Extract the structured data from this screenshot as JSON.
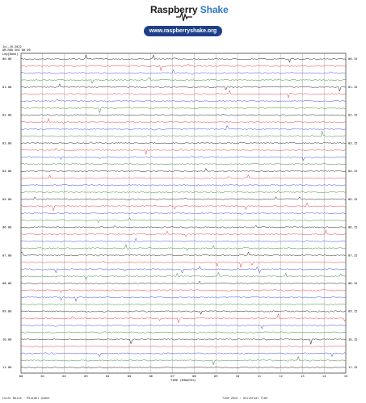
{
  "header": {
    "brand_primary": "Raspberry",
    "brand_accent": "Shake",
    "url": "www.raspberryshake.org"
  },
  "meta": {
    "date": "Jul-16-2022",
    "station": "AM.R00 SHZ 00 00",
    "filter": "Leg[Bank]"
  },
  "colors": {
    "trace_cycle": [
      "#000000",
      "#e8242a",
      "#2233d8",
      "#1f7a1f"
    ],
    "brand_accent": "#2f78c8",
    "pill": "#1e3f8a"
  },
  "chart_data": {
    "type": "line",
    "title": "",
    "xlabel": "TIME (MINUTES)",
    "x_ticks": [
      "00",
      "01",
      "02",
      "03",
      "04",
      "05",
      "06",
      "07",
      "08",
      "09",
      "10",
      "11",
      "12",
      "13",
      "14",
      "15"
    ],
    "xlim": [
      0,
      15
    ],
    "grid": true,
    "hour_labels_left": [
      "00.00",
      "01.00",
      "02.00",
      "03.00",
      "04.00",
      "05.00",
      "06.00",
      "07.00",
      "08.00",
      "09.00",
      "10.00",
      "11.00"
    ],
    "hour_labels_right": [
      "00.15",
      "01.15",
      "02.15",
      "03.15",
      "04.15",
      "05.15",
      "06.15",
      "07.15",
      "08.15",
      "09.15",
      "10.15",
      "11.15"
    ],
    "rows_per_hour": 4,
    "row_count": 45
  },
  "footer": {
    "left": "Local Noise · Minimal Quake",
    "right": "Time Zone : Universal Time"
  }
}
